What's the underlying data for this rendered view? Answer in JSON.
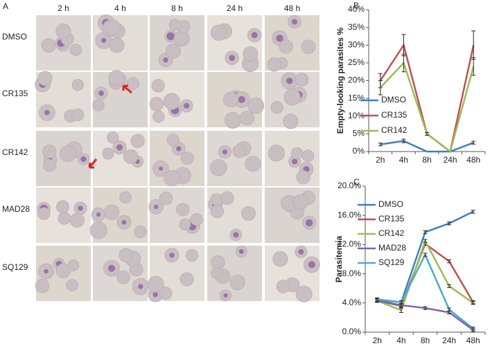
{
  "panel_labels": [
    "A",
    "B",
    "C"
  ],
  "micrographs": {
    "columns": [
      "2 h",
      "4 h",
      "8 h",
      "24 h",
      "48 h"
    ],
    "rows": [
      "DMSO",
      "CR135",
      "CR142",
      "MAD28",
      "SQ129"
    ]
  },
  "chart_data": [
    {
      "type": "line",
      "ylabel": "Empty-looking parasites %",
      "categories": [
        "2h",
        "4h",
        "8h",
        "24h",
        "48h"
      ],
      "ylim": [
        0,
        40
      ],
      "yticks": [
        {
          "value": 0,
          "label": "0%"
        },
        {
          "value": 5,
          "label": "5%"
        },
        {
          "value": 10,
          "label": "10%"
        },
        {
          "value": 15,
          "label": "15%"
        },
        {
          "value": 20,
          "label": "20%"
        },
        {
          "value": 25,
          "label": "25%"
        },
        {
          "value": 30,
          "label": "30%"
        },
        {
          "value": 35,
          "label": "35%"
        },
        {
          "value": 40,
          "label": "40%"
        }
      ],
      "legend": "left",
      "series": [
        {
          "name": "DMSO",
          "color": "#3f7fc0",
          "values": [
            2,
            3,
            0,
            0,
            2.5
          ],
          "errors": [
            0.4,
            0.5,
            0,
            0,
            0.4
          ]
        },
        {
          "name": "CR135",
          "color": "#c0504d",
          "values": [
            20,
            30,
            5,
            0,
            30
          ],
          "errors": [
            2,
            3,
            0.4,
            0,
            4
          ]
        },
        {
          "name": "CR142",
          "color": "#9bbb59",
          "values": [
            18,
            25,
            5,
            0,
            24
          ],
          "errors": [
            2,
            2.5,
            0.4,
            0,
            2.5
          ]
        }
      ]
    },
    {
      "type": "line",
      "ylabel": "Parasitemia",
      "categories": [
        "2h",
        "4h",
        "8h",
        "24h",
        "48h"
      ],
      "ylim": [
        0,
        20
      ],
      "yticks": [
        {
          "value": 0,
          "label": "0.0%"
        },
        {
          "value": 4,
          "label": "4.0%"
        },
        {
          "value": 8,
          "label": "8.0%"
        },
        {
          "value": 12,
          "label": "12.0%"
        },
        {
          "value": 16,
          "label": "16.0%"
        },
        {
          "value": 20,
          "label": "20.0%"
        }
      ],
      "legend": "left",
      "series": [
        {
          "name": "DMSO",
          "color": "#3f7fc0",
          "values": [
            4.4,
            4.1,
            13.7,
            14.9,
            16.5
          ],
          "errors": [
            0.2,
            0.2,
            0.2,
            0.2,
            0.2
          ]
        },
        {
          "name": "CR135",
          "color": "#c0504d",
          "values": [
            4.3,
            3.6,
            12.1,
            9.7,
            4.1
          ],
          "errors": [
            0.2,
            0.2,
            0.2,
            0.2,
            0.2
          ]
        },
        {
          "name": "CR142",
          "color": "#9bbb59",
          "values": [
            4.3,
            3.0,
            12.5,
            6.3,
            4.0
          ],
          "errors": [
            0.2,
            0.3,
            0.2,
            0.2,
            0.2
          ]
        },
        {
          "name": "MAD28",
          "color": "#8064a2",
          "values": [
            4.3,
            3.7,
            3.3,
            2.7,
            0.3
          ],
          "errors": [
            0.2,
            0.2,
            0.2,
            0.2,
            0.2
          ]
        },
        {
          "name": "SQ129",
          "color": "#4bacc6",
          "values": [
            4.5,
            4.1,
            10.6,
            3.1,
            0.5
          ],
          "errors": [
            0.2,
            0.2,
            0.2,
            0.2,
            0.2
          ]
        }
      ]
    }
  ]
}
